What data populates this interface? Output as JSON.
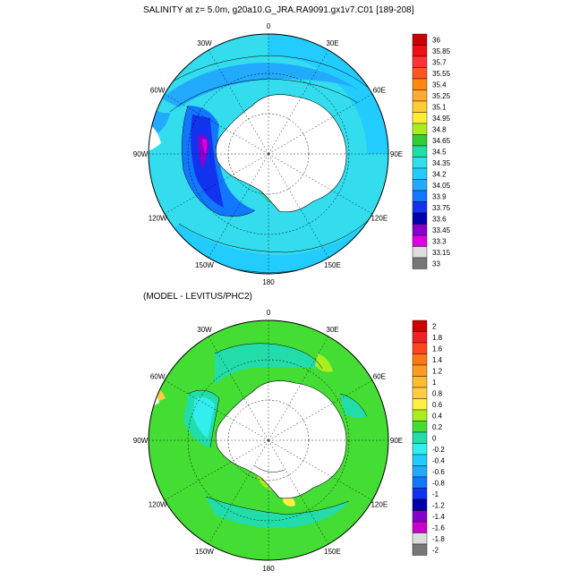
{
  "panels": [
    {
      "title": "SALINITY at z=   5.0m, g20a10.G_JRA.RA9091.gx1v7.C01 [189-208]",
      "longitude_labels": [
        "0",
        "30E",
        "60E",
        "90E",
        "120E",
        "150E",
        "180",
        "150W",
        "120W",
        "90W",
        "60W",
        "30W"
      ],
      "colorbar": {
        "levels": [
          "36",
          "35.85",
          "35.7",
          "35.55",
          "35.4",
          "35.25",
          "35.1",
          "34.95",
          "34.8",
          "34.65",
          "34.5",
          "34.35",
          "34.2",
          "34.05",
          "33.9",
          "33.75",
          "33.6",
          "33.45",
          "33.3",
          "33.15",
          "33"
        ],
        "colors": [
          "#cc0000",
          "#ee1111",
          "#ff3333",
          "#ff5522",
          "#ff8811",
          "#ffaa33",
          "#ffcc33",
          "#ffee33",
          "#aaee22",
          "#33cc33",
          "#22ddaa",
          "#33ddee",
          "#22ccff",
          "#22aaff",
          "#1177ff",
          "#1133ee",
          "#0000aa",
          "#8800cc",
          "#dd00dd",
          "#dddddd",
          "#777777"
        ]
      }
    },
    {
      "title": "(MODEL - LEVITUS/PHC2)",
      "longitude_labels": [
        "0",
        "30E",
        "60E",
        "90E",
        "120E",
        "150E",
        "180",
        "150W",
        "120W",
        "90W",
        "60W",
        "30W"
      ],
      "colorbar": {
        "levels": [
          "2",
          "1.8",
          "1.6",
          "1.4",
          "1.2",
          "1",
          "0.8",
          "0.6",
          "0.4",
          "0.2",
          "0",
          "-0.2",
          "-0.4",
          "-0.6",
          "-0.8",
          "-1",
          "-1.2",
          "-1.4",
          "-1.6",
          "-1.8",
          "-2"
        ],
        "colors": [
          "#cc0000",
          "#ee2222",
          "#ff4422",
          "#ff7711",
          "#ff9922",
          "#ffbb33",
          "#ffcc44",
          "#ffee44",
          "#aaee22",
          "#44dd33",
          "#22ddaa",
          "#33eeee",
          "#22ccff",
          "#22aaff",
          "#1177ff",
          "#1133ee",
          "#0000aa",
          "#8800cc",
          "#cc00cc",
          "#dddddd",
          "#777777"
        ]
      }
    }
  ]
}
